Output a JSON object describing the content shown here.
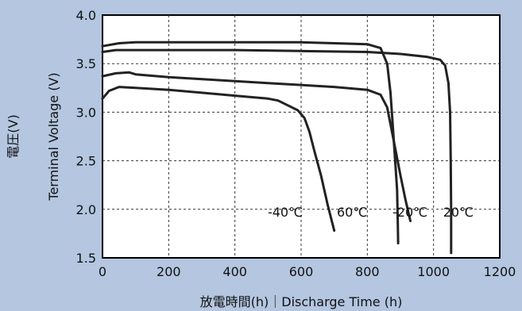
{
  "chart_data": {
    "type": "line",
    "xlabel": "放電時間(h)｜Discharge Time (h)",
    "ylabel_en": "Terminal Voltage (V)",
    "ylabel_jp": "電圧(V)",
    "xlim": [
      0,
      1200
    ],
    "ylim": [
      1.5,
      4.0
    ],
    "x_ticks": [
      "0",
      "200",
      "400",
      "600",
      "800",
      "1000",
      "1200"
    ],
    "y_ticks": [
      "1.5",
      "2.0",
      "2.5",
      "3.0",
      "3.5",
      "4.0"
    ],
    "grid": true,
    "series": [
      {
        "name": "-40℃",
        "label_at": [
          552,
          1.95
        ],
        "points": [
          [
            0,
            3.14
          ],
          [
            20,
            3.22
          ],
          [
            50,
            3.26
          ],
          [
            100,
            3.25
          ],
          [
            200,
            3.23
          ],
          [
            300,
            3.2
          ],
          [
            400,
            3.17
          ],
          [
            500,
            3.14
          ],
          [
            530,
            3.12
          ],
          [
            560,
            3.07
          ],
          [
            590,
            3.02
          ],
          [
            610,
            2.94
          ],
          [
            625,
            2.8
          ],
          [
            640,
            2.6
          ],
          [
            660,
            2.35
          ],
          [
            680,
            2.05
          ],
          [
            700,
            1.78
          ]
        ]
      },
      {
        "name": "60℃",
        "label_at": [
          754,
          1.95
        ],
        "points": [
          [
            0,
            3.68
          ],
          [
            50,
            3.71
          ],
          [
            100,
            3.72
          ],
          [
            300,
            3.72
          ],
          [
            500,
            3.72
          ],
          [
            600,
            3.72
          ],
          [
            700,
            3.71
          ],
          [
            800,
            3.7
          ],
          [
            840,
            3.66
          ],
          [
            860,
            3.5
          ],
          [
            870,
            3.2
          ],
          [
            880,
            2.7
          ],
          [
            890,
            2.2
          ],
          [
            892,
            1.85
          ],
          [
            893,
            1.65
          ]
        ]
      },
      {
        "name": "-20℃",
        "label_at": [
          929,
          1.95
        ],
        "points": [
          [
            0,
            3.37
          ],
          [
            40,
            3.4
          ],
          [
            80,
            3.41
          ],
          [
            100,
            3.39
          ],
          [
            200,
            3.36
          ],
          [
            300,
            3.34
          ],
          [
            400,
            3.32
          ],
          [
            500,
            3.3
          ],
          [
            600,
            3.28
          ],
          [
            700,
            3.26
          ],
          [
            800,
            3.23
          ],
          [
            840,
            3.18
          ],
          [
            860,
            3.05
          ],
          [
            880,
            2.7
          ],
          [
            900,
            2.35
          ],
          [
            915,
            2.1
          ],
          [
            930,
            1.88
          ]
        ]
      },
      {
        "name": "20℃",
        "label_at": [
          1075,
          1.95
        ],
        "points": [
          [
            0,
            3.62
          ],
          [
            40,
            3.64
          ],
          [
            100,
            3.64
          ],
          [
            200,
            3.64
          ],
          [
            400,
            3.64
          ],
          [
            600,
            3.63
          ],
          [
            800,
            3.62
          ],
          [
            900,
            3.6
          ],
          [
            980,
            3.57
          ],
          [
            1020,
            3.54
          ],
          [
            1035,
            3.48
          ],
          [
            1045,
            3.3
          ],
          [
            1050,
            3.0
          ],
          [
            1052,
            2.5
          ],
          [
            1053,
            2.0
          ],
          [
            1053,
            1.55
          ]
        ]
      }
    ]
  }
}
